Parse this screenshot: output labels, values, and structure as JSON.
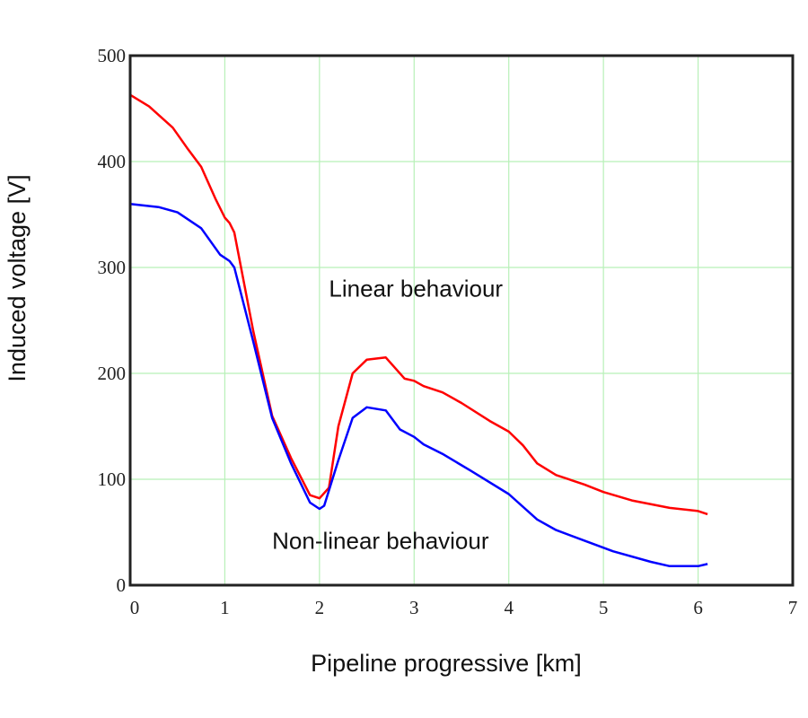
{
  "chart_data": {
    "type": "line",
    "title": "",
    "xlabel": "Pipeline progressive [km]",
    "ylabel": "Induced voltage [V]",
    "xlim": [
      0,
      7
    ],
    "ylim": [
      0,
      500
    ],
    "xticks": [
      "0",
      "1",
      "2",
      "3",
      "4",
      "5",
      "6",
      "7"
    ],
    "yticks": [
      "0",
      "100",
      "200",
      "300",
      "400",
      "500"
    ],
    "grid": true,
    "grid_color": "#b8f0b8",
    "annotations": [
      {
        "text": "Linear behaviour",
        "x": 2.1,
        "y": 280
      },
      {
        "text": "Non-linear behaviour",
        "x": 1.5,
        "y": 42
      }
    ],
    "series": [
      {
        "name": "Linear behaviour",
        "color": "#ff0000",
        "x": [
          0,
          0.2,
          0.45,
          0.6,
          0.75,
          0.9,
          1.0,
          1.05,
          1.1,
          1.3,
          1.5,
          1.7,
          1.9,
          2.0,
          2.1,
          2.2,
          2.35,
          2.5,
          2.7,
          2.9,
          3.0,
          3.1,
          3.3,
          3.5,
          3.8,
          4.0,
          4.15,
          4.3,
          4.5,
          4.8,
          5.0,
          5.3,
          5.7,
          6.0,
          6.1
        ],
        "y": [
          463,
          452,
          432,
          413,
          395,
          365,
          347,
          342,
          333,
          240,
          160,
          120,
          85,
          82,
          92,
          150,
          200,
          213,
          215,
          195,
          193,
          188,
          182,
          172,
          155,
          145,
          132,
          115,
          104,
          95,
          88,
          80,
          73,
          70,
          67
        ]
      },
      {
        "name": "Non-linear behaviour",
        "color": "#0000ff",
        "x": [
          0,
          0.3,
          0.5,
          0.75,
          0.95,
          1.05,
          1.1,
          1.3,
          1.5,
          1.7,
          1.9,
          2.0,
          2.05,
          2.2,
          2.35,
          2.5,
          2.7,
          2.85,
          3.0,
          3.1,
          3.3,
          3.6,
          4.0,
          4.3,
          4.5,
          4.8,
          5.1,
          5.5,
          5.7,
          6.0,
          6.1
        ],
        "y": [
          360,
          357,
          352,
          337,
          312,
          306,
          300,
          230,
          158,
          115,
          78,
          72,
          75,
          118,
          158,
          168,
          165,
          147,
          140,
          133,
          124,
          108,
          86,
          62,
          52,
          42,
          32,
          22,
          18,
          18,
          20
        ]
      }
    ]
  }
}
